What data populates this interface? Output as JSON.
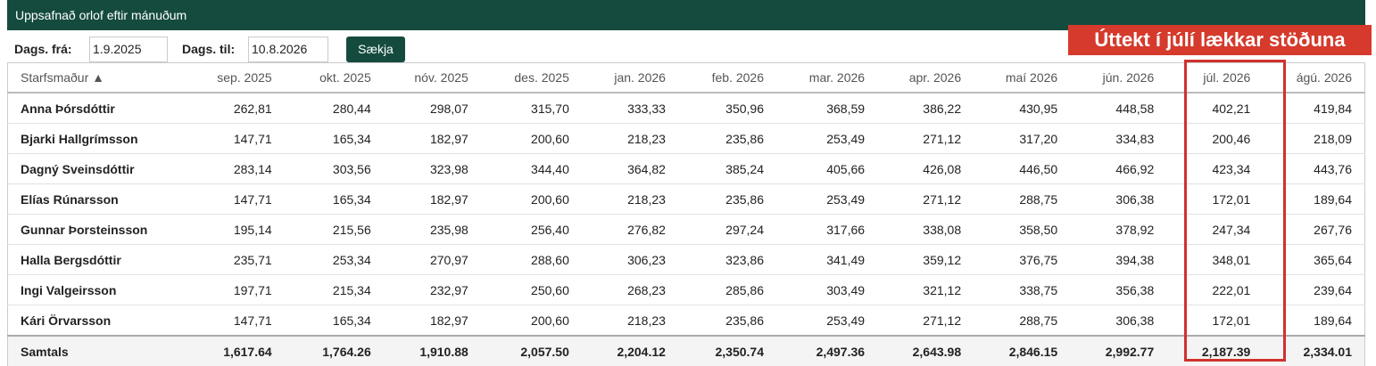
{
  "header": {
    "title": "Uppsafnað orlof eftir mánuðum"
  },
  "filters": {
    "from_label": "Dags. frá:",
    "from_value": "1.9.2025",
    "to_label": "Dags. til:",
    "to_value": "10.8.2026",
    "button": "Sækja"
  },
  "annotation": "Úttekt í júlí lækkar stöðuna",
  "table": {
    "columns": [
      "Starfsmaður ▲",
      "sep. 2025",
      "okt. 2025",
      "nóv. 2025",
      "des. 2025",
      "jan. 2026",
      "feb. 2026",
      "mar. 2026",
      "apr. 2026",
      "maí 2026",
      "jún. 2026",
      "júl. 2026",
      "ágú. 2026"
    ],
    "rows": [
      [
        "Anna Þórsdóttir",
        "262,81",
        "280,44",
        "298,07",
        "315,70",
        "333,33",
        "350,96",
        "368,59",
        "386,22",
        "430,95",
        "448,58",
        "402,21",
        "419,84"
      ],
      [
        "Bjarki Hallgrímsson",
        "147,71",
        "165,34",
        "182,97",
        "200,60",
        "218,23",
        "235,86",
        "253,49",
        "271,12",
        "317,20",
        "334,83",
        "200,46",
        "218,09"
      ],
      [
        "Dagný Sveinsdóttir",
        "283,14",
        "303,56",
        "323,98",
        "344,40",
        "364,82",
        "385,24",
        "405,66",
        "426,08",
        "446,50",
        "466,92",
        "423,34",
        "443,76"
      ],
      [
        "Elías Rúnarsson",
        "147,71",
        "165,34",
        "182,97",
        "200,60",
        "218,23",
        "235,86",
        "253,49",
        "271,12",
        "288,75",
        "306,38",
        "172,01",
        "189,64"
      ],
      [
        "Gunnar Þorsteinsson",
        "195,14",
        "215,56",
        "235,98",
        "256,40",
        "276,82",
        "297,24",
        "317,66",
        "338,08",
        "358,50",
        "378,92",
        "247,34",
        "267,76"
      ],
      [
        "Halla Bergsdóttir",
        "235,71",
        "253,34",
        "270,97",
        "288,60",
        "306,23",
        "323,86",
        "341,49",
        "359,12",
        "376,75",
        "394,38",
        "348,01",
        "365,64"
      ],
      [
        "Ingi Valgeirsson",
        "197,71",
        "215,34",
        "232,97",
        "250,60",
        "268,23",
        "285,86",
        "303,49",
        "321,12",
        "338,75",
        "356,38",
        "222,01",
        "239,64"
      ],
      [
        "Kári Örvarsson",
        "147,71",
        "165,34",
        "182,97",
        "200,60",
        "218,23",
        "235,86",
        "253,49",
        "271,12",
        "288,75",
        "306,38",
        "172,01",
        "189,64"
      ]
    ],
    "total": [
      "Samtals",
      "1,617.64",
      "1,764.26",
      "1,910.88",
      "2,057.50",
      "2,204.12",
      "2,350.74",
      "2,497.36",
      "2,643.98",
      "2,846.15",
      "2,992.77",
      "2,187.39",
      "2,334.01"
    ]
  }
}
